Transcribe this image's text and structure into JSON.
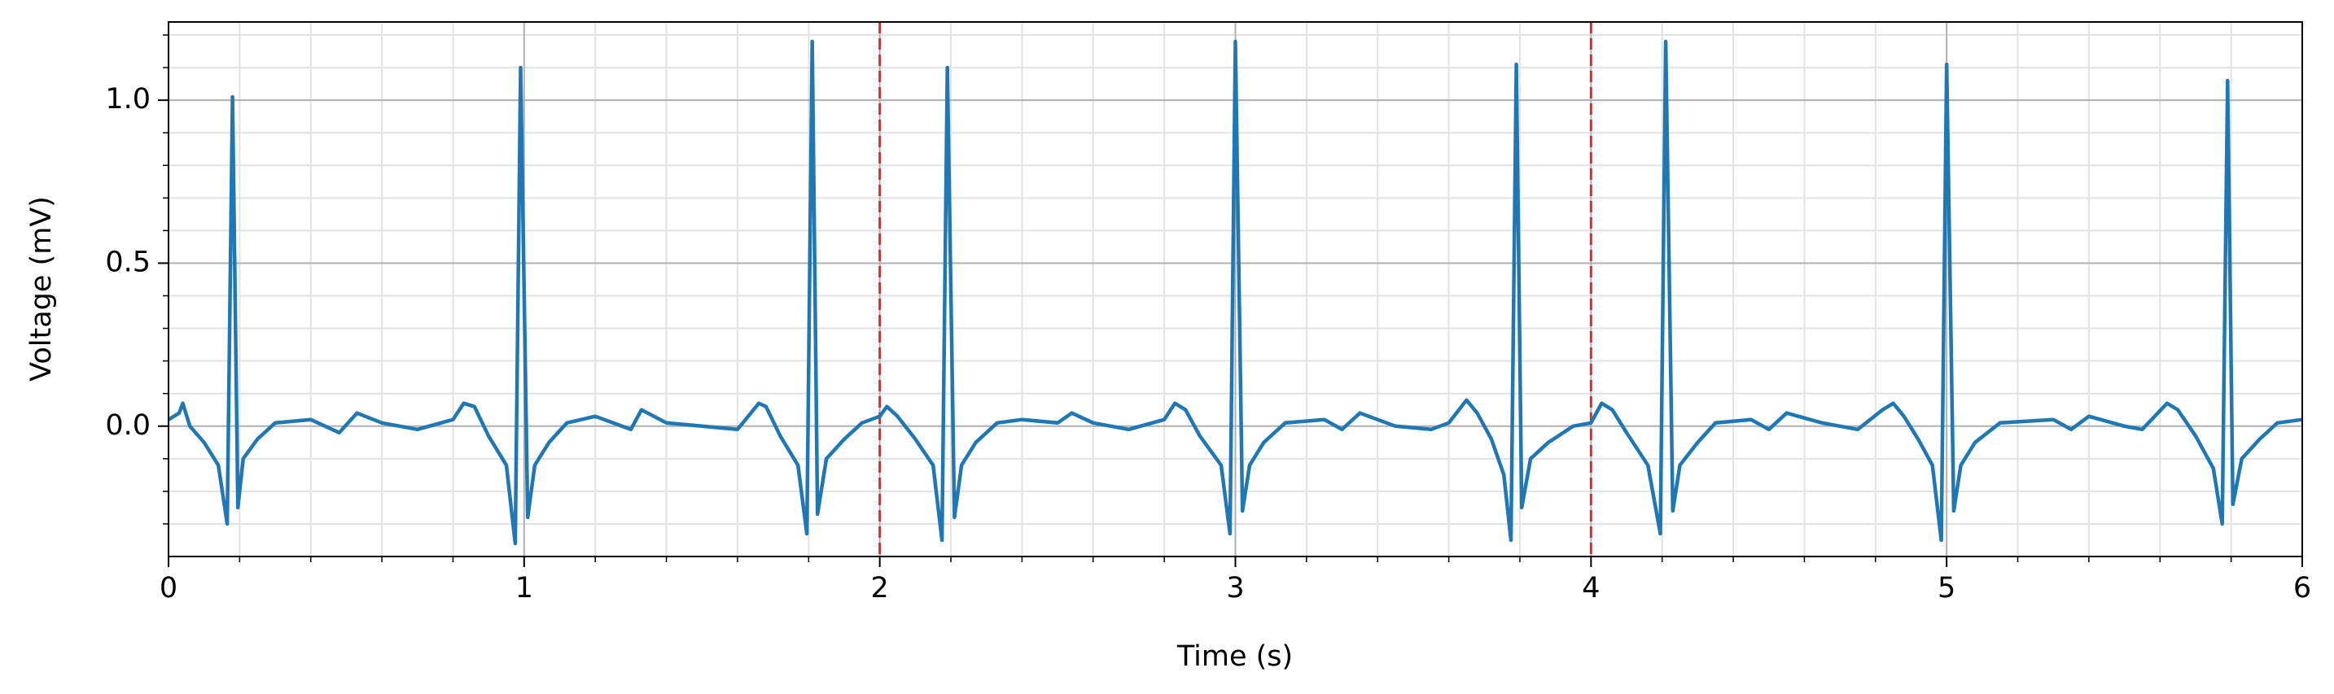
{
  "chart_data": {
    "type": "line",
    "xlabel": "Time (s)",
    "ylabel": "Voltage (mV)",
    "x": [
      0,
      0.03,
      0.04,
      0.06,
      0.1,
      0.14,
      0.165,
      0.18,
      0.195,
      0.21,
      0.25,
      0.3,
      0.4,
      0.48,
      0.53,
      0.6,
      0.7,
      0.8,
      0.83,
      0.86,
      0.9,
      0.95,
      0.975,
      0.99,
      1.01,
      1.03,
      1.07,
      1.12,
      1.2,
      1.3,
      1.33,
      1.4,
      1.5,
      1.6,
      1.66,
      1.68,
      1.72,
      1.77,
      1.795,
      1.81,
      1.825,
      1.85,
      1.9,
      1.95,
      2.0,
      2.02,
      2.05,
      2.1,
      2.15,
      2.175,
      2.19,
      2.21,
      2.23,
      2.27,
      2.33,
      2.4,
      2.5,
      2.54,
      2.6,
      2.7,
      2.8,
      2.83,
      2.86,
      2.9,
      2.96,
      2.985,
      3.0,
      3.02,
      3.04,
      3.08,
      3.14,
      3.25,
      3.3,
      3.35,
      3.45,
      3.55,
      3.6,
      3.65,
      3.68,
      3.72,
      3.755,
      3.775,
      3.79,
      3.805,
      3.83,
      3.88,
      3.95,
      4.0,
      4.03,
      4.06,
      4.1,
      4.16,
      4.195,
      4.21,
      4.23,
      4.25,
      4.3,
      4.35,
      4.45,
      4.5,
      4.55,
      4.65,
      4.75,
      4.82,
      4.85,
      4.88,
      4.92,
      4.96,
      4.985,
      5.0,
      5.02,
      5.04,
      5.08,
      5.15,
      5.3,
      5.35,
      5.4,
      5.5,
      5.55,
      5.62,
      5.65,
      5.7,
      5.75,
      5.775,
      5.79,
      5.805,
      5.83,
      5.88,
      5.93,
      6.0
    ],
    "values": [
      0.02,
      0.04,
      0.07,
      0.0,
      -0.05,
      -0.12,
      -0.3,
      1.01,
      -0.25,
      -0.1,
      -0.04,
      0.01,
      0.02,
      -0.02,
      0.04,
      0.01,
      -0.01,
      0.02,
      0.07,
      0.06,
      -0.03,
      -0.12,
      -0.36,
      1.1,
      -0.28,
      -0.12,
      -0.05,
      0.01,
      0.03,
      -0.01,
      0.05,
      0.01,
      0.0,
      -0.01,
      0.07,
      0.06,
      -0.03,
      -0.12,
      -0.33,
      1.18,
      -0.27,
      -0.1,
      -0.04,
      0.01,
      0.03,
      0.06,
      0.03,
      -0.04,
      -0.12,
      -0.35,
      1.1,
      -0.28,
      -0.12,
      -0.05,
      0.01,
      0.02,
      0.01,
      0.04,
      0.01,
      -0.01,
      0.02,
      0.07,
      0.05,
      -0.03,
      -0.12,
      -0.33,
      1.18,
      -0.26,
      -0.12,
      -0.05,
      0.01,
      0.02,
      -0.01,
      0.04,
      0.0,
      -0.01,
      0.01,
      0.08,
      0.04,
      -0.04,
      -0.15,
      -0.35,
      1.11,
      -0.25,
      -0.1,
      -0.05,
      0.0,
      0.01,
      0.07,
      0.05,
      -0.02,
      -0.12,
      -0.33,
      1.18,
      -0.26,
      -0.12,
      -0.05,
      0.01,
      0.02,
      -0.01,
      0.04,
      0.01,
      -0.01,
      0.05,
      0.07,
      0.03,
      -0.04,
      -0.12,
      -0.35,
      1.11,
      -0.26,
      -0.12,
      -0.05,
      0.01,
      0.02,
      -0.01,
      0.03,
      0.0,
      -0.01,
      0.07,
      0.05,
      -0.03,
      -0.13,
      -0.3,
      1.06,
      -0.24,
      -0.1,
      -0.04,
      0.01,
      0.02
    ],
    "color": "#1f77b4",
    "xlim": [
      0,
      6
    ],
    "ylim": [
      -0.4,
      1.24
    ],
    "xticks": [
      0,
      1,
      2,
      3,
      4,
      5,
      6
    ],
    "yticks": [
      {
        "value": 0,
        "label": "0.0"
      },
      0.5,
      {
        "value": 1,
        "label": "1.0"
      }
    ],
    "xminorticks": [
      0.2,
      0.4,
      0.6,
      0.8,
      1.2,
      1.4,
      1.6,
      1.8,
      2.2,
      2.4,
      2.6,
      2.8,
      3.2,
      3.4,
      3.6,
      3.8,
      4.2,
      4.4,
      4.6,
      4.8,
      5.2,
      5.4,
      5.6,
      5.8
    ],
    "yminorticks": [
      -0.3,
      -0.2,
      -0.1,
      0.1,
      0.2,
      0.3,
      0.4,
      0.6,
      0.7,
      0.8,
      0.9,
      1.1,
      1.2
    ],
    "grid": true,
    "vlines": [
      2,
      4
    ],
    "vline_color": "#e8262a"
  }
}
